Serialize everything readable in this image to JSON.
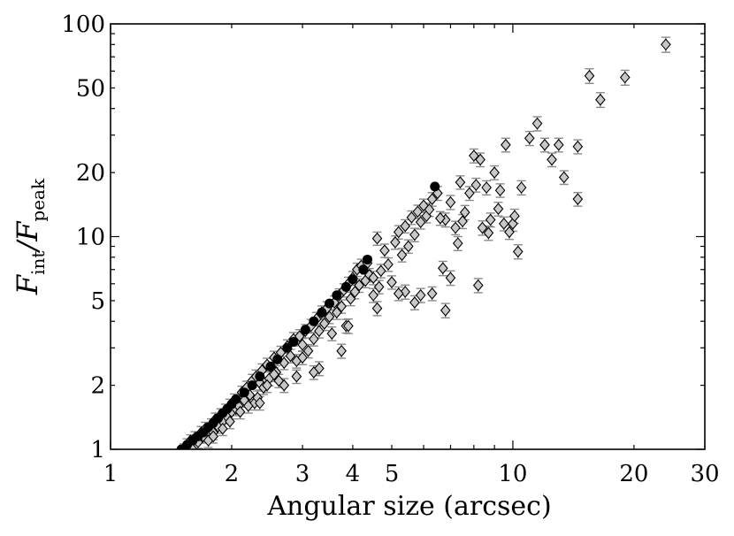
{
  "chart_data": {
    "type": "scatter",
    "title": "",
    "xlabel": "Angular size (arcsec)",
    "ylabel": {
      "num_main": "F",
      "num_sub": "int",
      "slash": "/",
      "den_main": "F",
      "den_sub": "peak"
    },
    "xscale": "log",
    "yscale": "log",
    "xlim": [
      1,
      30
    ],
    "ylim": [
      1,
      100
    ],
    "x_tick_labels": [
      "1",
      "2",
      "3",
      "4",
      "5",
      "10",
      "20",
      "30"
    ],
    "x_tick_values": [
      1,
      2,
      3,
      4,
      5,
      10,
      20,
      30
    ],
    "y_tick_labels": [
      "1",
      "2",
      "5",
      "10",
      "20",
      "50",
      "100"
    ],
    "y_tick_values": [
      1,
      2,
      5,
      10,
      20,
      50,
      100
    ],
    "grid": false,
    "legend": "none",
    "colors": {
      "diamond_fill": "#c8c8c8",
      "diamond_edge": "#000000",
      "errorbar": "#8a8a8a",
      "point_fill": "#000000"
    },
    "series": [
      {
        "marker": "diamond",
        "points": [
          [
            1.52,
            1.0,
            0.06
          ],
          [
            1.55,
            1.05,
            0.07
          ],
          [
            1.58,
            1.1,
            0.07
          ],
          [
            1.6,
            1.0,
            0.06
          ],
          [
            1.62,
            1.13,
            0.08
          ],
          [
            1.65,
            1.08,
            0.07
          ],
          [
            1.68,
            1.2,
            0.08
          ],
          [
            1.7,
            1.15,
            0.08
          ],
          [
            1.72,
            1.25,
            0.09
          ],
          [
            1.75,
            1.1,
            0.08
          ],
          [
            1.78,
            1.3,
            0.09
          ],
          [
            1.8,
            1.2,
            0.09
          ],
          [
            1.82,
            1.38,
            0.1
          ],
          [
            1.85,
            1.28,
            0.09
          ],
          [
            1.88,
            1.45,
            0.1
          ],
          [
            1.9,
            1.35,
            0.1
          ],
          [
            1.93,
            1.52,
            0.11
          ],
          [
            1.95,
            1.42,
            0.1
          ],
          [
            1.98,
            1.6,
            0.12
          ],
          [
            2.0,
            1.5,
            0.11
          ],
          [
            2.03,
            1.7,
            0.12
          ],
          [
            2.05,
            1.55,
            0.11
          ],
          [
            2.08,
            1.6,
            0.12
          ],
          [
            2.12,
            1.85,
            0.13
          ],
          [
            2.15,
            1.7,
            0.12
          ],
          [
            2.18,
            1.95,
            0.14
          ],
          [
            2.22,
            1.8,
            0.13
          ],
          [
            2.25,
            2.1,
            0.15
          ],
          [
            2.28,
            1.65,
            0.12
          ],
          [
            2.3,
            2.2,
            0.16
          ],
          [
            2.32,
            1.75,
            0.13
          ],
          [
            2.35,
            2.05,
            0.15
          ],
          [
            2.38,
            2.35,
            0.17
          ],
          [
            2.4,
            1.95,
            0.14
          ],
          [
            2.45,
            2.5,
            0.18
          ],
          [
            2.48,
            2.15,
            0.16
          ],
          [
            2.52,
            2.4,
            0.17
          ],
          [
            2.55,
            2.7,
            0.19
          ],
          [
            2.58,
            2.3,
            0.17
          ],
          [
            2.62,
            2.1,
            0.15
          ],
          [
            2.65,
            2.85,
            0.2
          ],
          [
            2.7,
            2.55,
            0.18
          ],
          [
            2.75,
            3.05,
            0.22
          ],
          [
            2.8,
            2.75,
            0.2
          ],
          [
            2.85,
            3.3,
            0.24
          ],
          [
            2.9,
            2.6,
            0.19
          ],
          [
            2.95,
            3.4,
            0.25
          ],
          [
            3.0,
            3.1,
            0.22
          ],
          [
            3.05,
            3.6,
            0.26
          ],
          [
            3.1,
            2.9,
            0.21
          ],
          [
            3.15,
            3.8,
            0.28
          ],
          [
            3.2,
            3.3,
            0.24
          ],
          [
            3.25,
            4.1,
            0.3
          ],
          [
            3.3,
            3.6,
            0.26
          ],
          [
            3.35,
            4.4,
            0.32
          ],
          [
            3.4,
            3.9,
            0.28
          ],
          [
            3.45,
            4.6,
            0.34
          ],
          [
            3.5,
            4.2,
            0.3
          ],
          [
            3.55,
            3.5,
            0.26
          ],
          [
            3.6,
            4.9,
            0.36
          ],
          [
            3.65,
            4.4,
            0.32
          ],
          [
            3.7,
            5.3,
            0.38
          ],
          [
            3.75,
            4.7,
            0.34
          ],
          [
            3.8,
            5.6,
            0.4
          ],
          [
            3.85,
            3.8,
            0.28
          ],
          [
            3.9,
            6.0,
            0.44
          ],
          [
            3.95,
            5.1,
            0.37
          ],
          [
            4.0,
            6.4,
            0.46
          ],
          [
            4.05,
            5.5,
            0.4
          ],
          [
            4.1,
            7.0,
            0.5
          ],
          [
            4.15,
            5.9,
            0.43
          ],
          [
            4.2,
            7.3,
            0.53
          ],
          [
            4.3,
            6.2,
            0.45
          ],
          [
            4.35,
            7.5,
            0.55
          ],
          [
            4.4,
            6.6,
            0.48
          ],
          [
            4.5,
            6.4,
            0.46
          ],
          [
            4.6,
            9.8,
            0.7
          ],
          [
            4.65,
            5.8,
            0.42
          ],
          [
            4.7,
            6.9,
            0.5
          ],
          [
            4.8,
            8.6,
            0.62
          ],
          [
            4.9,
            7.4,
            0.54
          ],
          [
            5.0,
            6.1,
            0.44
          ],
          [
            5.1,
            9.4,
            0.68
          ],
          [
            5.2,
            10.5,
            0.76
          ],
          [
            5.3,
            8.2,
            0.6
          ],
          [
            5.4,
            11.2,
            0.8
          ],
          [
            5.5,
            9.0,
            0.65
          ],
          [
            5.6,
            12.3,
            0.9
          ],
          [
            5.7,
            10.2,
            0.74
          ],
          [
            5.8,
            13.1,
            0.95
          ],
          [
            5.9,
            11.7,
            0.85
          ],
          [
            6.0,
            14.0,
            1.0
          ],
          [
            6.1,
            12.5,
            0.9
          ],
          [
            6.2,
            13.4,
            0.97
          ],
          [
            6.3,
            15.0,
            1.1
          ],
          [
            6.5,
            16.0,
            1.2
          ],
          [
            6.8,
            12.0,
            0.9
          ],
          [
            7.0,
            14.5,
            1.1
          ],
          [
            7.2,
            11.0,
            0.8
          ],
          [
            7.4,
            18.0,
            1.3
          ],
          [
            7.6,
            13.0,
            1.0
          ],
          [
            7.8,
            16.0,
            1.2
          ],
          [
            8.0,
            24.0,
            1.8
          ],
          [
            8.3,
            23.0,
            1.7
          ],
          [
            8.6,
            17.0,
            1.3
          ],
          [
            9.0,
            20.0,
            1.5
          ],
          [
            9.3,
            16.5,
            1.2
          ],
          [
            9.6,
            27.0,
            2.0
          ],
          [
            10.0,
            11.5,
            0.9
          ],
          [
            10.5,
            17.0,
            1.3
          ],
          [
            11.0,
            29.0,
            2.2
          ],
          [
            11.5,
            34.0,
            2.6
          ],
          [
            12.0,
            27.0,
            2.0
          ],
          [
            12.5,
            23.0,
            1.7
          ],
          [
            13.0,
            27.0,
            2.0
          ],
          [
            14.5,
            26.5,
            2.0
          ],
          [
            15.5,
            57.0,
            4.5
          ],
          [
            16.5,
            44.0,
            3.5
          ],
          [
            19.0,
            56.0,
            4.5
          ],
          [
            24.0,
            80.0,
            6.5
          ],
          [
            13.4,
            19.0,
            1.4
          ],
          [
            14.5,
            15.0,
            1.1
          ],
          [
            10.3,
            8.5,
            0.65
          ],
          [
            9.8,
            10.5,
            0.8
          ],
          [
            8.7,
            10.4,
            0.8
          ],
          [
            8.2,
            5.9,
            0.45
          ],
          [
            7.0,
            6.4,
            0.5
          ],
          [
            6.8,
            4.5,
            0.35
          ],
          [
            6.3,
            5.4,
            0.4
          ],
          [
            5.9,
            5.3,
            0.4
          ],
          [
            5.7,
            4.9,
            0.37
          ],
          [
            5.4,
            5.5,
            0.42
          ],
          [
            5.2,
            5.4,
            0.4
          ],
          [
            4.6,
            4.6,
            0.35
          ],
          [
            4.5,
            5.3,
            0.4
          ],
          [
            3.9,
            3.8,
            0.3
          ],
          [
            3.75,
            2.9,
            0.22
          ],
          [
            3.3,
            2.4,
            0.18
          ],
          [
            3.2,
            2.3,
            0.17
          ],
          [
            3.0,
            2.7,
            0.2
          ],
          [
            2.9,
            2.2,
            0.16
          ],
          [
            2.7,
            2.0,
            0.15
          ],
          [
            2.55,
            2.25,
            0.17
          ],
          [
            2.45,
            2.0,
            0.15
          ],
          [
            2.35,
            1.65,
            0.12
          ],
          [
            2.2,
            1.6,
            0.12
          ],
          [
            2.1,
            1.5,
            0.11
          ],
          [
            1.98,
            1.35,
            0.1
          ],
          [
            1.9,
            1.25,
            0.09
          ],
          [
            1.8,
            1.15,
            0.08
          ],
          [
            7.5,
            11.8,
            0.9
          ],
          [
            7.3,
            9.3,
            0.7
          ],
          [
            8.1,
            17.5,
            1.3
          ],
          [
            8.4,
            11.0,
            0.85
          ],
          [
            8.8,
            12.0,
            0.9
          ],
          [
            9.2,
            13.5,
            1.0
          ],
          [
            9.5,
            11.5,
            0.85
          ],
          [
            10.1,
            12.5,
            0.95
          ],
          [
            6.6,
            12.2,
            0.9
          ],
          [
            6.7,
            7.1,
            0.55
          ]
        ]
      },
      {
        "marker": "circle",
        "points": [
          [
            1.5,
            1.0
          ],
          [
            1.55,
            1.05
          ],
          [
            1.6,
            1.1
          ],
          [
            1.65,
            1.15
          ],
          [
            1.7,
            1.2
          ],
          [
            1.75,
            1.27
          ],
          [
            1.8,
            1.33
          ],
          [
            1.85,
            1.4
          ],
          [
            1.9,
            1.48
          ],
          [
            1.95,
            1.55
          ],
          [
            2.0,
            1.63
          ],
          [
            2.05,
            1.72
          ],
          [
            2.15,
            1.85
          ],
          [
            2.25,
            2.0
          ],
          [
            2.35,
            2.2
          ],
          [
            2.5,
            2.45
          ],
          [
            2.6,
            2.65
          ],
          [
            2.75,
            3.0
          ],
          [
            2.85,
            3.2
          ],
          [
            3.05,
            3.65
          ],
          [
            3.2,
            4.0
          ],
          [
            3.35,
            4.4
          ],
          [
            3.5,
            4.85
          ],
          [
            3.65,
            5.3
          ],
          [
            3.85,
            5.8
          ],
          [
            4.0,
            6.3
          ],
          [
            4.25,
            7.0
          ],
          [
            4.35,
            7.8
          ],
          [
            6.4,
            17.2
          ]
        ]
      }
    ]
  }
}
